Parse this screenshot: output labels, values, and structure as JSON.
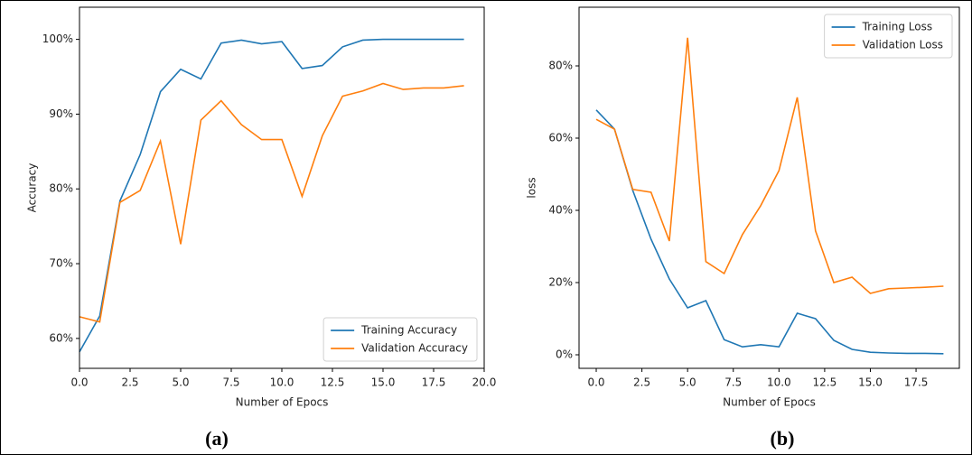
{
  "chart_data": [
    {
      "type": "line",
      "xlabel": "Number of Epocs",
      "ylabel": "Accuracy",
      "caption": "(a)",
      "x": [
        0,
        1,
        2,
        3,
        4,
        5,
        6,
        7,
        8,
        9,
        10,
        11,
        12,
        13,
        14,
        15,
        16,
        17,
        18,
        19
      ],
      "xlim": [
        0,
        20
      ],
      "xticks": [
        {
          "value": 0,
          "label": "0.0"
        },
        {
          "value": 2.5,
          "label": "2.5"
        },
        {
          "value": 5,
          "label": "5.0"
        },
        {
          "value": 7.5,
          "label": "7.5"
        },
        {
          "value": 10,
          "label": "10.0"
        },
        {
          "value": 12.5,
          "label": "12.5"
        },
        {
          "value": 15,
          "label": "15.0"
        },
        {
          "value": 17.5,
          "label": "17.5"
        },
        {
          "value": 20,
          "label": "20.0"
        }
      ],
      "ylim": [
        56,
        104.3
      ],
      "yticks": [
        {
          "value": 60,
          "label": "60%"
        },
        {
          "value": 70,
          "label": "70%"
        },
        {
          "value": 80,
          "label": "80%"
        },
        {
          "value": 90,
          "label": "90%"
        },
        {
          "value": 100,
          "label": "100%"
        }
      ],
      "legend": "lower right",
      "series": [
        {
          "name": "Training Accuracy",
          "color": "#1f77b4",
          "values": [
            58.2,
            63.0,
            78.4,
            84.6,
            93.0,
            96.0,
            94.7,
            99.5,
            99.9,
            99.4,
            99.7,
            96.1,
            96.5,
            99.0,
            99.9,
            100,
            100,
            100,
            100,
            100
          ]
        },
        {
          "name": "Validation Accuracy",
          "color": "#ff7f0e",
          "values": [
            62.9,
            62.2,
            78.2,
            79.8,
            86.4,
            72.6,
            89.2,
            91.8,
            88.6,
            86.6,
            86.6,
            79.0,
            87.1,
            92.4,
            93.1,
            94.1,
            93.3,
            93.5,
            93.5,
            93.8
          ]
        }
      ]
    },
    {
      "type": "line",
      "xlabel": "Number of Epocs",
      "ylabel": "loss",
      "caption": "(b)",
      "x": [
        0,
        1,
        2,
        3,
        4,
        5,
        6,
        7,
        8,
        9,
        10,
        11,
        12,
        13,
        14,
        15,
        16,
        17,
        18,
        19
      ],
      "xlim": [
        -0.94,
        19.87
      ],
      "xticks": [
        {
          "value": 0,
          "label": "0.0"
        },
        {
          "value": 2.5,
          "label": "2.5"
        },
        {
          "value": 5,
          "label": "5.0"
        },
        {
          "value": 7.5,
          "label": "7.5"
        },
        {
          "value": 10,
          "label": "10.0"
        },
        {
          "value": 12.5,
          "label": "12.5"
        },
        {
          "value": 15,
          "label": "15.0"
        },
        {
          "value": 17.5,
          "label": "17.5"
        }
      ],
      "ylim": [
        -3.75,
        96.25
      ],
      "yticks": [
        {
          "value": 0,
          "label": "0%"
        },
        {
          "value": 20,
          "label": "20%"
        },
        {
          "value": 40,
          "label": "40%"
        },
        {
          "value": 60,
          "label": "60%"
        },
        {
          "value": 80,
          "label": "80%"
        }
      ],
      "legend": "upper right",
      "series": [
        {
          "name": "Training Loss",
          "color": "#1f77b4",
          "values": [
            67.8,
            62.5,
            45.5,
            32,
            21,
            13,
            15,
            4.2,
            2.2,
            2.8,
            2.2,
            11.5,
            10,
            4,
            1.5,
            0.7,
            0.5,
            0.4,
            0.4,
            0.3
          ]
        },
        {
          "name": "Validation Loss",
          "color": "#ff7f0e",
          "values": [
            65.2,
            62.5,
            45.8,
            45,
            31.5,
            87.8,
            25.8,
            22.5,
            33.3,
            41.3,
            51,
            71.3,
            34.3,
            20,
            21.5,
            17,
            18.3,
            18.5,
            18.7,
            19
          ]
        }
      ]
    }
  ]
}
